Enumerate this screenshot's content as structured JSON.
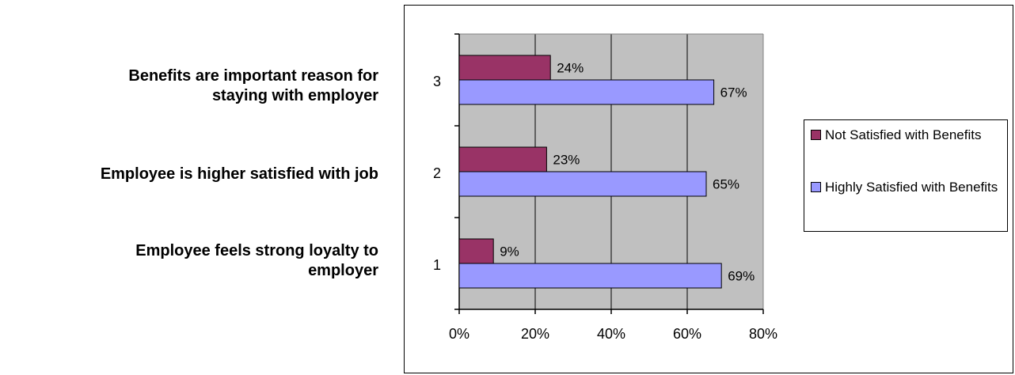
{
  "side_labels": [
    "Benefits are important reason for\nstaying with employer",
    "Employee is higher satisfied with job",
    "Employee feels strong loyalty to\nemployer"
  ],
  "chart_data": {
    "type": "bar",
    "orientation": "horizontal",
    "categories": [
      "1",
      "2",
      "3"
    ],
    "series": [
      {
        "name": "Not Satisfied with Benefits",
        "values": [
          9,
          23,
          24
        ],
        "labels": [
          "9%",
          "23%",
          "24%"
        ],
        "color": "#993366"
      },
      {
        "name": "Highly Satisfied with Benefits",
        "values": [
          69,
          65,
          67
        ],
        "labels": [
          "69%",
          "65%",
          "67%"
        ],
        "color": "#9999ff"
      }
    ],
    "x_ticks": [
      "0%",
      "20%",
      "40%",
      "60%",
      "80%"
    ],
    "xlim": [
      0,
      80
    ],
    "plot_background": "#c0c0c0",
    "grid": true,
    "legend_position": "right",
    "title": "",
    "xlabel": "",
    "ylabel": ""
  }
}
